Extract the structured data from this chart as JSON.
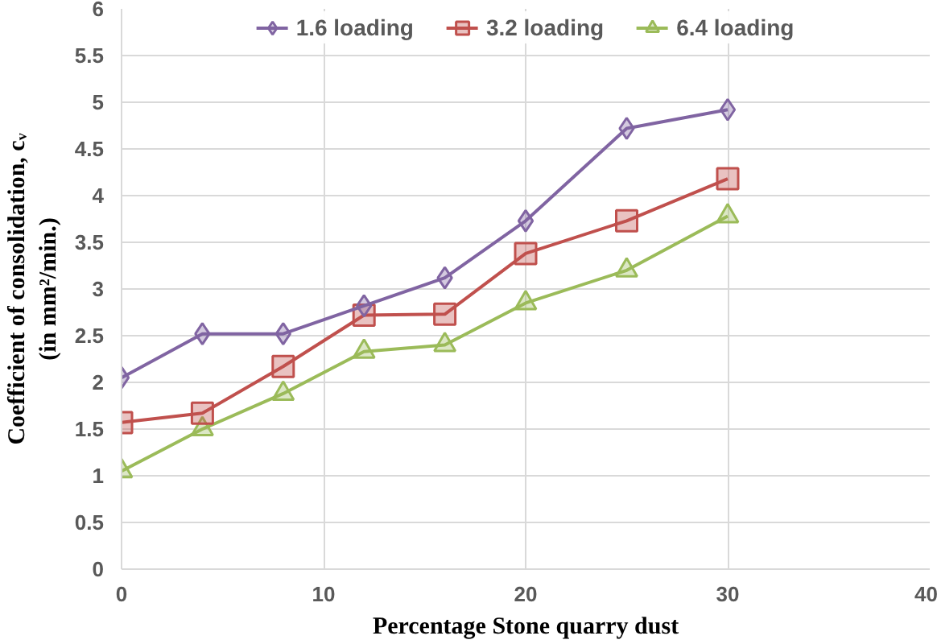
{
  "chart_data": {
    "type": "line",
    "xlabel": "Percentage Stone quarry dust",
    "ylabel": [
      "Coefficient of consolidation, cᵥ",
      "(in mm²/min.)"
    ],
    "x": [
      0,
      4,
      8,
      12,
      16,
      20,
      25,
      30
    ],
    "series": [
      {
        "name": "1.6 loading",
        "color": "#8064a2",
        "marker": "diamond",
        "values": [
          2.05,
          2.52,
          2.52,
          2.82,
          3.12,
          3.73,
          4.72,
          4.92
        ]
      },
      {
        "name": "3.2 loading",
        "color": "#c0504d",
        "marker": "square",
        "values": [
          1.57,
          1.67,
          2.17,
          2.72,
          2.73,
          3.38,
          3.73,
          4.18
        ]
      },
      {
        "name": "6.4 loading",
        "color": "#9bbb59",
        "marker": "triangle",
        "values": [
          1.05,
          1.5,
          1.88,
          2.33,
          2.4,
          2.85,
          3.2,
          3.78
        ]
      }
    ],
    "xlim": [
      0,
      40
    ],
    "xticks": [
      0,
      10,
      20,
      30,
      40
    ],
    "ylim": [
      0,
      6
    ],
    "yticks": [
      0,
      0.5,
      1,
      1.5,
      2,
      2.5,
      3,
      3.5,
      4,
      4.5,
      5,
      5.5,
      6
    ],
    "grid": true,
    "legend": "top",
    "line_style": "solid"
  }
}
